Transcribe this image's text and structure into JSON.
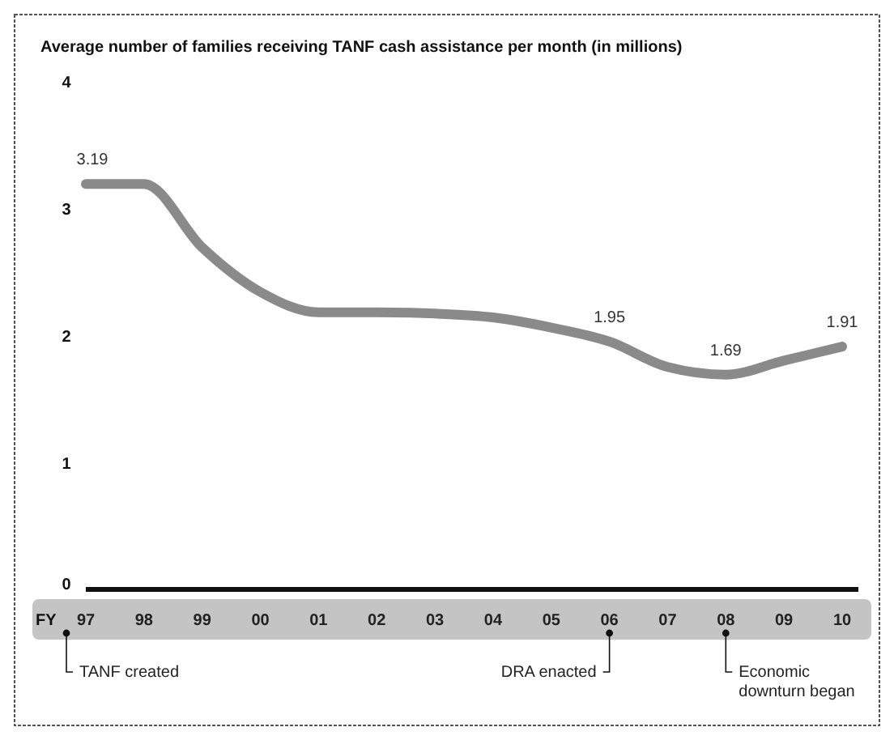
{
  "chart_data": {
    "type": "line",
    "title": "Average number of families receiving TANF cash assistance per month (in millions)",
    "xlabel": "FY",
    "categories": [
      "97",
      "98",
      "99",
      "00",
      "01",
      "02",
      "03",
      "04",
      "05",
      "06",
      "07",
      "08",
      "09",
      "10"
    ],
    "series": [
      {
        "color": "#8a8a8a",
        "values": [
          3.19,
          3.19,
          2.69,
          2.34,
          2.18,
          2.18,
          2.17,
          2.14,
          2.06,
          1.95,
          1.75,
          1.69,
          1.8,
          1.91
        ],
        "value_labels": [
          "3.19",
          null,
          null,
          null,
          null,
          null,
          null,
          null,
          null,
          "1.95",
          null,
          "1.69",
          null,
          "1.91"
        ]
      }
    ],
    "ylim": [
      0,
      4
    ],
    "yticks": [
      0,
      1,
      2,
      3,
      4
    ],
    "grid": false,
    "marker": "none",
    "line_style": "solid",
    "annotations": [
      "TANF created",
      "DRA enacted",
      "Economic downturn began"
    ]
  }
}
